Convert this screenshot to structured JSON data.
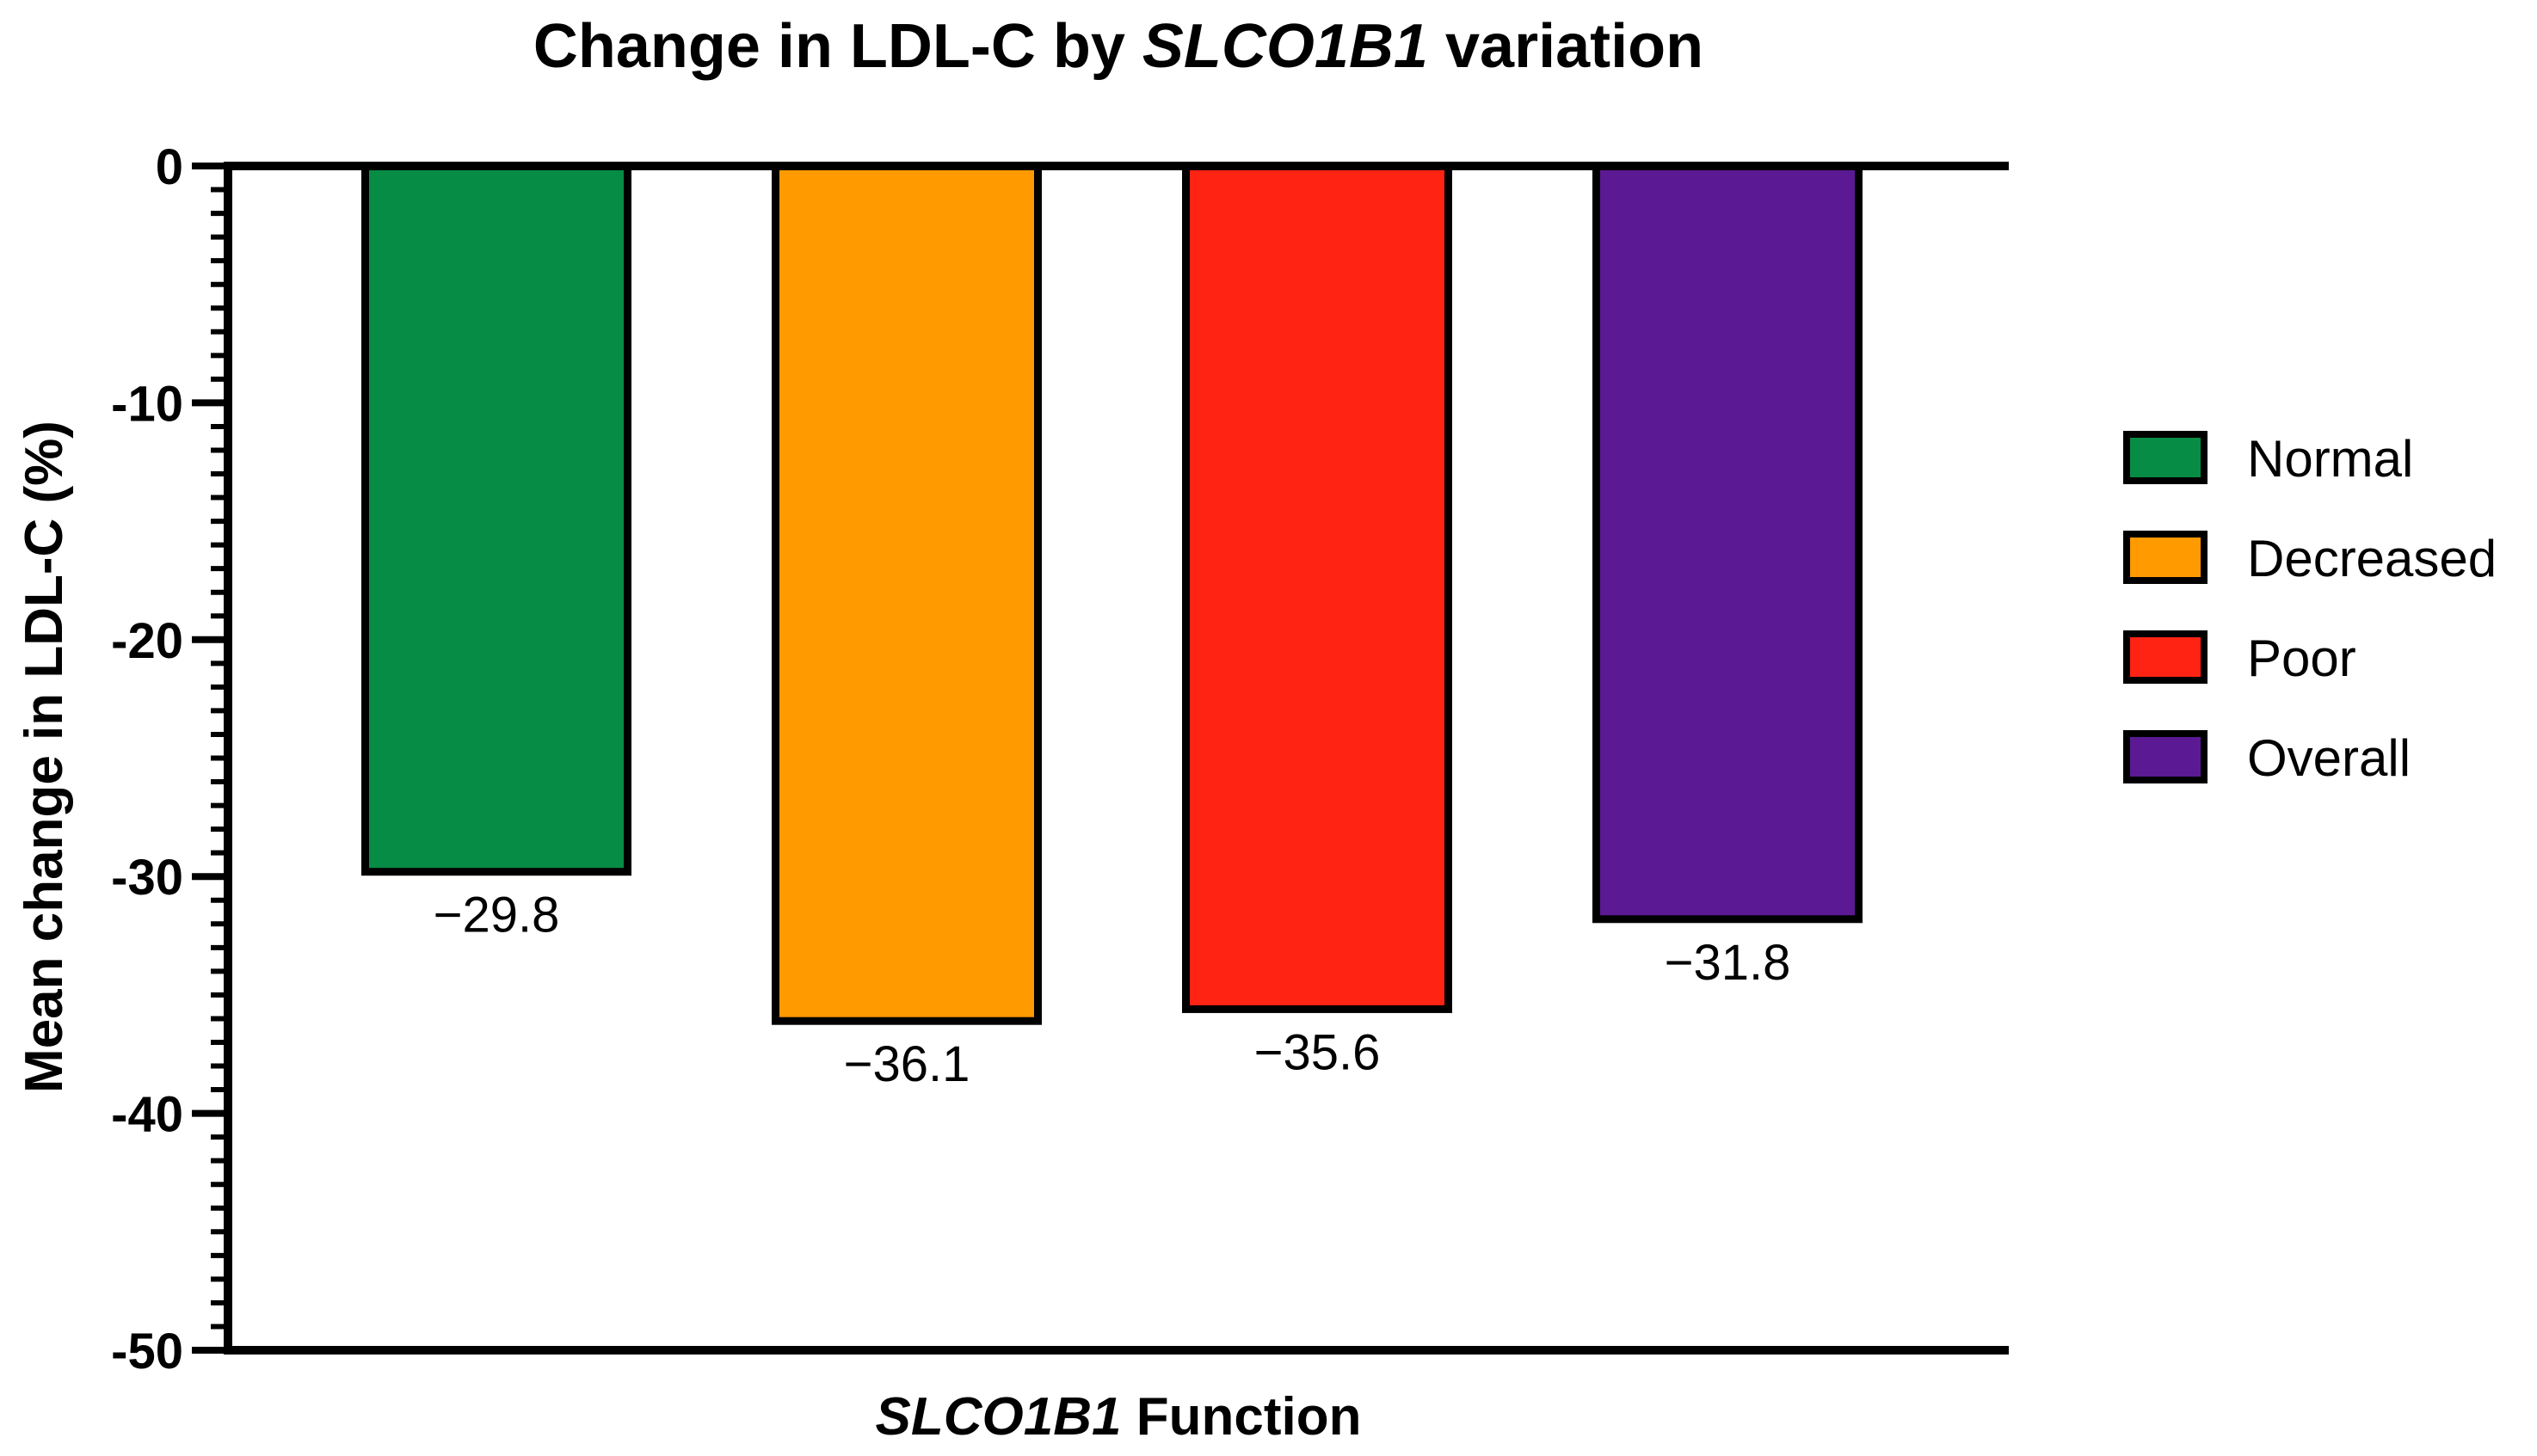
{
  "chart_data": {
    "type": "bar",
    "title": {
      "prefix": "Change in LDL-C by ",
      "gene": "SLCO1B1",
      "suffix": " variation"
    },
    "xlabel": {
      "gene": "SLCO1B1",
      "suffix": " Function"
    },
    "ylabel": "Mean change in LDL-C (%)",
    "ylim": [
      -50,
      0
    ],
    "yticks": [
      0,
      -10,
      -20,
      -30,
      -40,
      -50
    ],
    "ytick_labels": [
      "0",
      "-10",
      "-20",
      "-30",
      "-40",
      "-50"
    ],
    "minor_tick_step": 1,
    "categories": [
      "Normal",
      "Decreased",
      "Poor",
      "Overall"
    ],
    "values": [
      -29.8,
      -36.1,
      -35.6,
      -31.8
    ],
    "data_labels": [
      "−29.8",
      "−36.1",
      "−35.6",
      "−31.8"
    ],
    "colors": [
      "#078C45",
      "#FF9A00",
      "#FF2313",
      "#5B1A93"
    ],
    "legend": {
      "position": "right",
      "entries": [
        "Normal",
        "Decreased",
        "Poor",
        "Overall"
      ]
    }
  }
}
